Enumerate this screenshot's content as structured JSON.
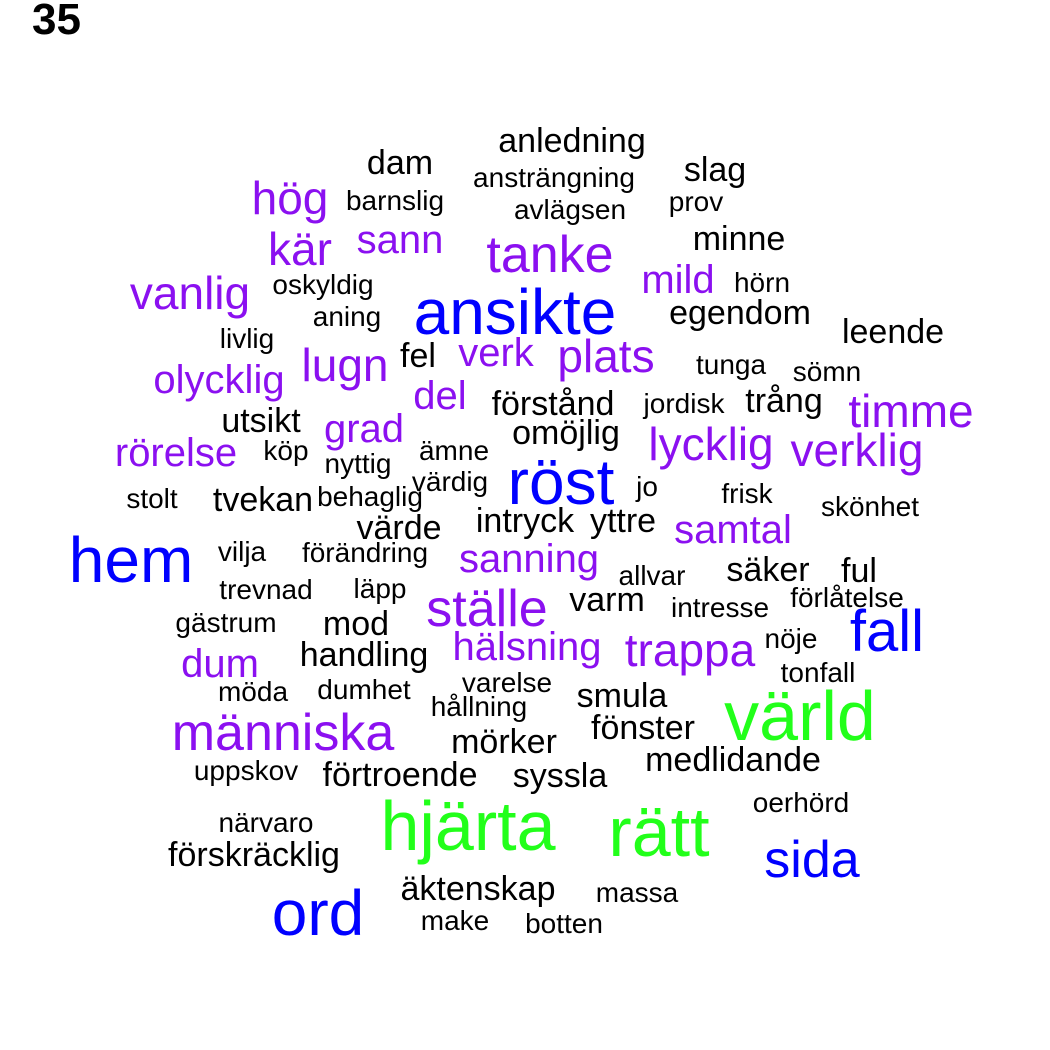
{
  "label": "35",
  "colors": {
    "black": "#000000",
    "purple": "#8B10F0",
    "blue": "#0000FF",
    "green": "#22FF1A"
  },
  "words": [
    {
      "text": "anledning",
      "color": "black"
    },
    {
      "text": "dam",
      "color": "black"
    },
    {
      "text": "slag",
      "color": "black"
    },
    {
      "text": "ansträngning",
      "color": "black"
    },
    {
      "text": "hög",
      "color": "purple"
    },
    {
      "text": "barnslig",
      "color": "black"
    },
    {
      "text": "prov",
      "color": "black"
    },
    {
      "text": "avlägsen",
      "color": "black"
    },
    {
      "text": "minne",
      "color": "black"
    },
    {
      "text": "kär",
      "color": "purple"
    },
    {
      "text": "sann",
      "color": "purple"
    },
    {
      "text": "tanke",
      "color": "purple"
    },
    {
      "text": "mild",
      "color": "purple"
    },
    {
      "text": "hörn",
      "color": "black"
    },
    {
      "text": "vanlig",
      "color": "purple"
    },
    {
      "text": "oskyldig",
      "color": "black"
    },
    {
      "text": "ansikte",
      "color": "blue"
    },
    {
      "text": "egendom",
      "color": "black"
    },
    {
      "text": "aning",
      "color": "black"
    },
    {
      "text": "leende",
      "color": "black"
    },
    {
      "text": "livlig",
      "color": "black"
    },
    {
      "text": "lugn",
      "color": "purple"
    },
    {
      "text": "fel",
      "color": "black"
    },
    {
      "text": "verk",
      "color": "purple"
    },
    {
      "text": "plats",
      "color": "purple"
    },
    {
      "text": "tunga",
      "color": "black"
    },
    {
      "text": "sömn",
      "color": "black"
    },
    {
      "text": "olycklig",
      "color": "purple"
    },
    {
      "text": "del",
      "color": "purple"
    },
    {
      "text": "förstånd",
      "color": "black"
    },
    {
      "text": "jordisk",
      "color": "black"
    },
    {
      "text": "trång",
      "color": "black"
    },
    {
      "text": "timme",
      "color": "purple"
    },
    {
      "text": "utsikt",
      "color": "black"
    },
    {
      "text": "grad",
      "color": "purple"
    },
    {
      "text": "omöjlig",
      "color": "black"
    },
    {
      "text": "lycklig",
      "color": "purple"
    },
    {
      "text": "verklig",
      "color": "purple"
    },
    {
      "text": "rörelse",
      "color": "purple"
    },
    {
      "text": "köp",
      "color": "black"
    },
    {
      "text": "ämne",
      "color": "black"
    },
    {
      "text": "nyttig",
      "color": "black"
    },
    {
      "text": "röst",
      "color": "blue"
    },
    {
      "text": "värdig",
      "color": "black"
    },
    {
      "text": "jo",
      "color": "black"
    },
    {
      "text": "frisk",
      "color": "black"
    },
    {
      "text": "skönhet",
      "color": "black"
    },
    {
      "text": "stolt",
      "color": "black"
    },
    {
      "text": "tvekan",
      "color": "black"
    },
    {
      "text": "behaglig",
      "color": "black"
    },
    {
      "text": "intryck",
      "color": "black"
    },
    {
      "text": "yttre",
      "color": "black"
    },
    {
      "text": "värde",
      "color": "black"
    },
    {
      "text": "samtal",
      "color": "purple"
    },
    {
      "text": "hem",
      "color": "blue"
    },
    {
      "text": "vilja",
      "color": "black"
    },
    {
      "text": "förändring",
      "color": "black"
    },
    {
      "text": "sanning",
      "color": "purple"
    },
    {
      "text": "allvar",
      "color": "black"
    },
    {
      "text": "säker",
      "color": "black"
    },
    {
      "text": "ful",
      "color": "black"
    },
    {
      "text": "trevnad",
      "color": "black"
    },
    {
      "text": "läpp",
      "color": "black"
    },
    {
      "text": "ställe",
      "color": "purple"
    },
    {
      "text": "varm",
      "color": "black"
    },
    {
      "text": "intresse",
      "color": "black"
    },
    {
      "text": "förlåtelse",
      "color": "black"
    },
    {
      "text": "gästrum",
      "color": "black"
    },
    {
      "text": "mod",
      "color": "black"
    },
    {
      "text": "fall",
      "color": "blue"
    },
    {
      "text": "handling",
      "color": "black"
    },
    {
      "text": "hälsning",
      "color": "purple"
    },
    {
      "text": "trappa",
      "color": "purple"
    },
    {
      "text": "nöje",
      "color": "black"
    },
    {
      "text": "dum",
      "color": "purple"
    },
    {
      "text": "tonfall",
      "color": "black"
    },
    {
      "text": "varelse",
      "color": "black"
    },
    {
      "text": "möda",
      "color": "black"
    },
    {
      "text": "dumhet",
      "color": "black"
    },
    {
      "text": "smula",
      "color": "black"
    },
    {
      "text": "hållning",
      "color": "black"
    },
    {
      "text": "värld",
      "color": "green"
    },
    {
      "text": "människa",
      "color": "purple"
    },
    {
      "text": "fönster",
      "color": "black"
    },
    {
      "text": "mörker",
      "color": "black"
    },
    {
      "text": "medlidande",
      "color": "black"
    },
    {
      "text": "uppskov",
      "color": "black"
    },
    {
      "text": "förtroende",
      "color": "black"
    },
    {
      "text": "syssla",
      "color": "black"
    },
    {
      "text": "oerhörd",
      "color": "black"
    },
    {
      "text": "närvaro",
      "color": "black"
    },
    {
      "text": "hjärta",
      "color": "green"
    },
    {
      "text": "rätt",
      "color": "green"
    },
    {
      "text": "förskräcklig",
      "color": "black"
    },
    {
      "text": "sida",
      "color": "blue"
    },
    {
      "text": "äktenskap",
      "color": "black"
    },
    {
      "text": "massa",
      "color": "black"
    },
    {
      "text": "ord",
      "color": "blue"
    },
    {
      "text": "make",
      "color": "black"
    },
    {
      "text": "botten",
      "color": "black"
    }
  ]
}
